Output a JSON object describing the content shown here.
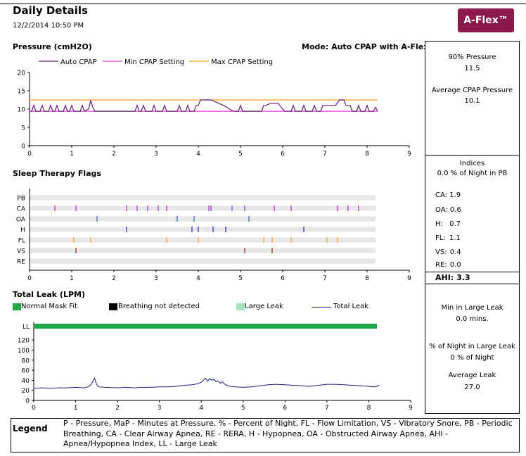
{
  "header": {
    "title": "Daily Details",
    "datetime": "12/2/2014 10:50 PM",
    "badge": "A-Flex™",
    "badge_color": "#8b1a4a"
  },
  "pressure": {
    "title": "Pressure (cmH2O)",
    "mode": "Mode: Auto CPAP with A-Flex",
    "legend": [
      {
        "label": "Auto CPAP",
        "color": "#6a1b7a"
      },
      {
        "label": "Min CPAP Setting",
        "color": "#e040e0"
      },
      {
        "label": "Max CPAP Setting",
        "color": "#f0a020"
      }
    ]
  },
  "flags": {
    "title": "Sleep Therapy Flags",
    "rows": [
      "PB",
      "CA",
      "OA",
      "H",
      "FL",
      "VS",
      "RE"
    ],
    "events": {
      "CA": [
        0.6,
        1.1,
        2.3,
        2.55,
        2.8,
        3.05,
        3.25,
        4.25,
        4.3,
        4.8,
        5.1,
        5.8,
        6.2,
        7.3,
        7.55,
        7.8
      ],
      "OA": [
        1.6,
        3.5,
        3.9,
        5.2
      ],
      "H": [
        2.3,
        3.85,
        4.0,
        4.35,
        4.65,
        6.5
      ],
      "FL": [
        1.05,
        1.45,
        3.25,
        4.0,
        5.55,
        5.75,
        6.2,
        7.05,
        7.3
      ],
      "VS": [
        1.1,
        5.1,
        5.75
      ],
      "PB": [],
      "RE": []
    },
    "colors": {
      "CA": "#9933cc",
      "OA": "#3355aa",
      "H": "#222299",
      "FL": "#f0a020",
      "VS": "#8b2500"
    }
  },
  "leak": {
    "title": "Total Leak (LPM)",
    "legend": [
      {
        "label": "Normal Mask Fit",
        "color": "#20a848"
      },
      {
        "label": "Breathing not detected",
        "color": "#000000"
      },
      {
        "label": "Large Leak",
        "color": "#a8e0b8"
      },
      {
        "label": "Total Leak",
        "color": "#1a1a80"
      }
    ]
  },
  "summary": {
    "pressure_90_label": "90% Pressure",
    "pressure_90_value": "11.5",
    "avg_cpap_label": "Average CPAP Pressure",
    "avg_cpap_value": "10.1",
    "indices_label": "Indices",
    "pb_text": "0.0 % of Night in PB",
    "indices": [
      {
        "label": "CA:",
        "value": "1.9"
      },
      {
        "label": "OA:",
        "value": "0.6"
      },
      {
        "label": "H:",
        "value": "0.7"
      },
      {
        "label": "FL:",
        "value": "1.1"
      },
      {
        "label": "VS:",
        "value": "0.4"
      },
      {
        "label": "RE:",
        "value": "0.0"
      }
    ],
    "ahi_label": "AHI:",
    "ahi_value": "3.3",
    "min_large_leak_label": "Min in Large Leak",
    "min_large_leak_value": "0.0  mins.",
    "pct_large_leak_label": "% of Night in Large Leak",
    "pct_large_leak_value": "0 % of Night",
    "avg_leak_label": "Average Leak",
    "avg_leak_value": "27.0"
  },
  "legend": {
    "title": "Legend",
    "text": "P - Pressure, MaP - Minutes at Pressure, % - Percent of Night, FL - Flow Limitation, VS - Vibratory Snore, PB - Periodic Breathing, CA - Clear Airway Apnea, RE - RERA, H - Hypopnea, OA - Obstructed Airway Apnea, AHI - Apnea/Hypopnea Index, LL - Large Leak"
  },
  "chart_data": [
    {
      "type": "line",
      "title": "Pressure (cmH2O)",
      "xlabel": "",
      "ylabel": "",
      "xlim": [
        0,
        9
      ],
      "ylim": [
        0,
        20
      ],
      "xticks": [
        0,
        1,
        2,
        3,
        4,
        5,
        6,
        7,
        8,
        9
      ],
      "yticks": [
        0,
        5,
        10,
        15,
        20
      ],
      "series": [
        {
          "name": "Min CPAP Setting",
          "values": [
            [
              0,
              9.4
            ],
            [
              8.25,
              9.4
            ]
          ]
        },
        {
          "name": "Max CPAP Setting",
          "values": [
            [
              0,
              12.5
            ],
            [
              8.25,
              12.5
            ]
          ]
        },
        {
          "name": "Auto CPAP",
          "values": [
            [
              0,
              9.4
            ],
            [
              0.05,
              9.4
            ],
            [
              0.1,
              11
            ],
            [
              0.15,
              9.4
            ],
            [
              0.25,
              9.4
            ],
            [
              0.3,
              11
            ],
            [
              0.35,
              9.4
            ],
            [
              0.45,
              9.4
            ],
            [
              0.5,
              11
            ],
            [
              0.55,
              9.4
            ],
            [
              0.6,
              9.4
            ],
            [
              0.65,
              11
            ],
            [
              0.7,
              9.4
            ],
            [
              0.8,
              9.4
            ],
            [
              0.85,
              11
            ],
            [
              0.9,
              9.4
            ],
            [
              0.95,
              9.4
            ],
            [
              1.0,
              11
            ],
            [
              1.05,
              9.4
            ],
            [
              1.1,
              9.4
            ],
            [
              1.2,
              9.4
            ],
            [
              1.25,
              11
            ],
            [
              1.3,
              9.4
            ],
            [
              1.4,
              10
            ],
            [
              1.45,
              12.3
            ],
            [
              1.5,
              10.5
            ],
            [
              1.55,
              9.4
            ],
            [
              2.5,
              9.4
            ],
            [
              2.55,
              11
            ],
            [
              2.6,
              9.4
            ],
            [
              2.65,
              9.4
            ],
            [
              2.7,
              11
            ],
            [
              2.75,
              9.4
            ],
            [
              2.9,
              9.4
            ],
            [
              2.95,
              11
            ],
            [
              3.0,
              9.4
            ],
            [
              3.15,
              9.4
            ],
            [
              3.2,
              11
            ],
            [
              3.25,
              9.4
            ],
            [
              3.5,
              9.4
            ],
            [
              3.55,
              11
            ],
            [
              3.6,
              9.4
            ],
            [
              3.7,
              9.4
            ],
            [
              3.75,
              11
            ],
            [
              3.8,
              9.4
            ],
            [
              3.9,
              9.4
            ],
            [
              3.95,
              11
            ],
            [
              4.0,
              11
            ],
            [
              4.05,
              12.5
            ],
            [
              4.3,
              12.5
            ],
            [
              4.4,
              12
            ],
            [
              4.6,
              11
            ],
            [
              4.8,
              9.6
            ],
            [
              4.85,
              9.4
            ],
            [
              4.95,
              9.4
            ],
            [
              5.0,
              11
            ],
            [
              5.05,
              9.4
            ],
            [
              5.5,
              9.4
            ],
            [
              5.55,
              11
            ],
            [
              5.6,
              11
            ],
            [
              5.7,
              11.5
            ],
            [
              5.9,
              11.5
            ],
            [
              6.0,
              10
            ],
            [
              6.05,
              9.4
            ],
            [
              6.2,
              9.4
            ],
            [
              6.25,
              11
            ],
            [
              6.3,
              9.4
            ],
            [
              6.45,
              9.4
            ],
            [
              6.5,
              11
            ],
            [
              6.55,
              9.4
            ],
            [
              6.7,
              9.4
            ],
            [
              6.75,
              11
            ],
            [
              6.8,
              9.4
            ],
            [
              6.9,
              9.4
            ],
            [
              6.95,
              11
            ],
            [
              7.0,
              11
            ],
            [
              7.1,
              11
            ],
            [
              7.25,
              11
            ],
            [
              7.35,
              12.5
            ],
            [
              7.45,
              12.5
            ],
            [
              7.5,
              11
            ],
            [
              7.6,
              11
            ],
            [
              7.65,
              9.4
            ],
            [
              7.75,
              9.4
            ],
            [
              7.8,
              11
            ],
            [
              7.85,
              9.4
            ],
            [
              7.95,
              9.4
            ],
            [
              8.0,
              11
            ],
            [
              8.05,
              9.4
            ],
            [
              8.15,
              9.4
            ],
            [
              8.2,
              10.5
            ],
            [
              8.25,
              9.4
            ]
          ]
        }
      ]
    },
    {
      "type": "scatter",
      "title": "Sleep Therapy Flags",
      "xlabel": "",
      "ylabel": "",
      "xlim": [
        0,
        9
      ],
      "xticks": [
        0,
        1,
        2,
        3,
        4,
        5,
        6,
        7,
        8,
        9
      ],
      "categories": [
        "PB",
        "CA",
        "OA",
        "H",
        "FL",
        "VS",
        "RE"
      ]
    },
    {
      "type": "line",
      "title": "Total Leak (LPM)",
      "xlabel": "",
      "ylabel": "",
      "xlim": [
        0,
        9
      ],
      "ylim": [
        0,
        130
      ],
      "xticks": [
        0,
        1,
        2,
        3,
        4,
        5,
        6,
        7,
        8,
        9
      ],
      "yticks": [
        0,
        20,
        40,
        60,
        80,
        100,
        120
      ],
      "ytick_labels": [
        "0",
        "20",
        "40",
        "60",
        "80",
        "100",
        "120"
      ],
      "ll_label": "LL",
      "series": [
        {
          "name": "Total Leak",
          "values": [
            [
              0,
              24
            ],
            [
              0.2,
              25
            ],
            [
              0.4,
              24
            ],
            [
              0.6,
              25
            ],
            [
              0.8,
              25
            ],
            [
              1.0,
              26
            ],
            [
              1.2,
              25
            ],
            [
              1.3,
              27
            ],
            [
              1.35,
              30
            ],
            [
              1.4,
              36
            ],
            [
              1.45,
              44
            ],
            [
              1.5,
              32
            ],
            [
              1.55,
              27
            ],
            [
              1.7,
              26
            ],
            [
              2.0,
              25
            ],
            [
              2.2,
              26
            ],
            [
              2.4,
              25
            ],
            [
              2.6,
              26
            ],
            [
              2.8,
              26
            ],
            [
              3.0,
              27
            ],
            [
              3.2,
              27
            ],
            [
              3.4,
              28
            ],
            [
              3.6,
              30
            ],
            [
              3.8,
              31
            ],
            [
              3.9,
              33
            ],
            [
              4.0,
              36
            ],
            [
              4.05,
              40
            ],
            [
              4.1,
              44
            ],
            [
              4.15,
              38
            ],
            [
              4.2,
              43
            ],
            [
              4.25,
              40
            ],
            [
              4.3,
              42
            ],
            [
              4.35,
              37
            ],
            [
              4.4,
              39
            ],
            [
              4.45,
              34
            ],
            [
              4.5,
              37
            ],
            [
              4.55,
              33
            ],
            [
              4.6,
              30
            ],
            [
              4.7,
              28
            ],
            [
              4.8,
              27
            ],
            [
              5.0,
              26
            ],
            [
              5.2,
              27
            ],
            [
              5.4,
              29
            ],
            [
              5.6,
              31
            ],
            [
              5.8,
              32
            ],
            [
              6.0,
              31
            ],
            [
              6.2,
              30
            ],
            [
              6.4,
              29
            ],
            [
              6.6,
              28
            ],
            [
              6.8,
              30
            ],
            [
              7.0,
              32
            ],
            [
              7.2,
              32
            ],
            [
              7.4,
              31
            ],
            [
              7.6,
              30
            ],
            [
              7.8,
              29
            ],
            [
              8.0,
              28
            ],
            [
              8.15,
              27
            ],
            [
              8.25,
              30
            ]
          ]
        }
      ]
    }
  ]
}
